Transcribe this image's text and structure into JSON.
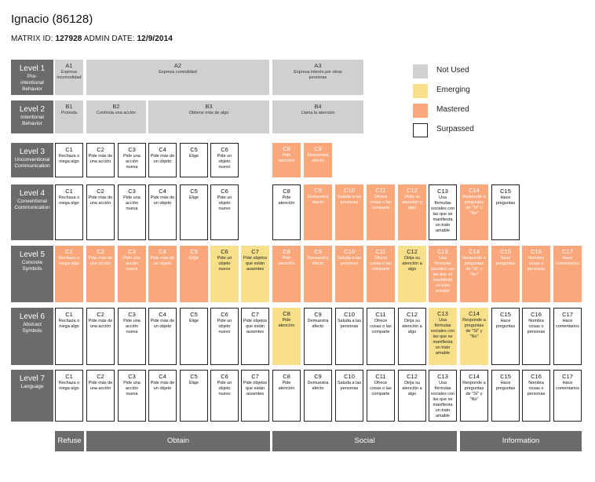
{
  "header": {
    "title": "Ignacio (86128)",
    "matrix_id_label": "MATRIX ID:",
    "matrix_id": "127928",
    "admin_date_label": "ADMIN DATE:",
    "admin_date": "12/9/2014"
  },
  "status_colors": {
    "not_used": "#d0d0d0",
    "emerging": "#f8e08a",
    "mastered": "#f9a77b",
    "surpassed": "#ffffff"
  },
  "legend": [
    {
      "status": "not_used",
      "label": "Not Used"
    },
    {
      "status": "emerging",
      "label": "Emerging"
    },
    {
      "status": "mastered",
      "label": "Mastered"
    },
    {
      "status": "surpassed",
      "label": "Surpassed"
    }
  ],
  "categories": [
    {
      "label": "Refuse"
    },
    {
      "label": "Obtain"
    },
    {
      "label": "Social"
    },
    {
      "label": "Information"
    }
  ],
  "levels": [
    {
      "name": "Level 1",
      "desc": "Pre-\nintentional\nBehavior",
      "cells": [
        {
          "code": "A1",
          "text": "Expresa\nincomodidad",
          "status": "not_used"
        },
        {
          "code": "A2",
          "text": "Expresa comodidad",
          "status": "not_used"
        },
        {
          "code": "A3",
          "text": "Expresa interés por otras\npersonas",
          "status": "not_used"
        }
      ]
    },
    {
      "name": "Level 2",
      "desc": "Intentional\nBehavior",
      "cells": [
        {
          "code": "B1",
          "text": "Protesta",
          "status": "not_used"
        },
        {
          "code": "B2",
          "text": "Continúa una acción",
          "status": "not_used"
        },
        {
          "code": "B3",
          "text": "Obtiene más de algo",
          "status": "not_used"
        },
        {
          "code": "B4",
          "text": "Llama la atención",
          "status": "not_used"
        }
      ]
    },
    {
      "name": "Level 3",
      "desc": "Unconventional\nCommunication",
      "cells": [
        {
          "code": "C1",
          "text": "Rechaza o\nniega algo",
          "status": "surpassed"
        },
        {
          "code": "C2",
          "text": "Pide más de\nuna acción",
          "status": "surpassed"
        },
        {
          "code": "C3",
          "text": "Pide una\nacción\nnueva",
          "status": "surpassed"
        },
        {
          "code": "C4",
          "text": "Pide más de\nun objeto",
          "status": "surpassed"
        },
        {
          "code": "C5",
          "text": "Elige",
          "status": "surpassed"
        },
        {
          "code": "C6",
          "text": "Pide un\nobjeto\nnuevo",
          "status": "surpassed"
        },
        {
          "code": "C8",
          "text": "Pide\natención",
          "status": "mastered"
        },
        {
          "code": "C9",
          "text": "Demuestra\nafecto",
          "status": "mastered"
        }
      ]
    },
    {
      "name": "Level 4",
      "desc": "Conventional\nCommunication",
      "cells": [
        {
          "code": "C1",
          "text": "Rechaza o\nniega algo",
          "status": "surpassed"
        },
        {
          "code": "C2",
          "text": "Pide más de\nuna acción",
          "status": "surpassed"
        },
        {
          "code": "C3",
          "text": "Pide una\nacción\nnueva",
          "status": "surpassed"
        },
        {
          "code": "C4",
          "text": "Pide más de\nun objeto",
          "status": "surpassed"
        },
        {
          "code": "C5",
          "text": "Elige",
          "status": "surpassed"
        },
        {
          "code": "C6",
          "text": "Pide un\nobjeto\nnuevo",
          "status": "surpassed"
        },
        {
          "code": "C8",
          "text": "Pide\natención",
          "status": "surpassed"
        },
        {
          "code": "C9",
          "text": "Demuestra\nafecto",
          "status": "mastered"
        },
        {
          "code": "C10",
          "text": "Saluda a las\npersonas",
          "status": "mastered"
        },
        {
          "code": "C11",
          "text": "Ofrece\ncosas o las\ncomparte",
          "status": "mastered"
        },
        {
          "code": "C12",
          "text": "Dirija su\natención a\nalgo",
          "status": "mastered"
        },
        {
          "code": "C13",
          "text": "Usa\nfórmulas\nsociales con\nlas que se\nmanifiesta\nun trato\namable",
          "status": "surpassed"
        },
        {
          "code": "C14",
          "text": "Responde a\npreguntas\nde \"Sí\" y\n\"No\"",
          "status": "mastered"
        },
        {
          "code": "C15",
          "text": "Hace\npreguntas",
          "status": "surpassed"
        }
      ]
    },
    {
      "name": "Level 5",
      "desc": "Concrete\nSymbols",
      "cells": [
        {
          "code": "C1",
          "text": "Rechaza o\nniega algo",
          "status": "mastered"
        },
        {
          "code": "C2",
          "text": "Pide más de\nuna acción",
          "status": "mastered"
        },
        {
          "code": "C3",
          "text": "Pide una\nacción\nnueva",
          "status": "mastered"
        },
        {
          "code": "C4",
          "text": "Pide más de\nun objeto",
          "status": "mastered"
        },
        {
          "code": "C5",
          "text": "Elige",
          "status": "mastered"
        },
        {
          "code": "C6",
          "text": "Pide un\nobjeto\nnuevo",
          "status": "emerging"
        },
        {
          "code": "C7",
          "text": "Pide objetos\nque están\nausentes",
          "status": "emerging"
        },
        {
          "code": "C8",
          "text": "Pide\natención",
          "status": "mastered"
        },
        {
          "code": "C9",
          "text": "Demuestra\nafecto",
          "status": "mastered"
        },
        {
          "code": "C10",
          "text": "Saluda a las\npersonas",
          "status": "mastered"
        },
        {
          "code": "C11",
          "text": "Ofrece\ncosas o las\ncomparte",
          "status": "mastered"
        },
        {
          "code": "C12",
          "text": "Dirija su\natención a\nalgo",
          "status": "emerging"
        },
        {
          "code": "C13",
          "text": "Usa\nfórmulas\nsociales con\nlas que se\nmanifiesta\nun trato\namable",
          "status": "mastered"
        },
        {
          "code": "C14",
          "text": "Responde a\npreguntas\nde \"Sí\" y\n\"No\"",
          "status": "mastered"
        },
        {
          "code": "C15",
          "text": "Hace\npreguntas",
          "status": "mastered"
        },
        {
          "code": "C16",
          "text": "Nombra\ncosas o\npersonas",
          "status": "mastered"
        },
        {
          "code": "C17",
          "text": "Hace\ncomentarios",
          "status": "mastered"
        }
      ]
    },
    {
      "name": "Level 6",
      "desc": "Abstract\nSymbols",
      "cells": [
        {
          "code": "C1",
          "text": "Rechaza o\nniega algo",
          "status": "surpassed"
        },
        {
          "code": "C2",
          "text": "Pide más de\nuna acción",
          "status": "surpassed"
        },
        {
          "code": "C3",
          "text": "Pide una\nacción\nnueva",
          "status": "surpassed"
        },
        {
          "code": "C4",
          "text": "Pide más de\nun objeto",
          "status": "surpassed"
        },
        {
          "code": "C5",
          "text": "Elige",
          "status": "surpassed"
        },
        {
          "code": "C6",
          "text": "Pide un\nobjeto\nnuevo",
          "status": "surpassed"
        },
        {
          "code": "C7",
          "text": "Pide objetos\nque están\nausentes",
          "status": "surpassed"
        },
        {
          "code": "C8",
          "text": "Pide\natención",
          "status": "emerging"
        },
        {
          "code": "C9",
          "text": "Demuestra\nafecto",
          "status": "surpassed"
        },
        {
          "code": "C10",
          "text": "Saluda a las\npersonas",
          "status": "surpassed"
        },
        {
          "code": "C11",
          "text": "Ofrece\ncosas o las\ncomparte",
          "status": "surpassed"
        },
        {
          "code": "C12",
          "text": "Dirija su\natención a\nalgo",
          "status": "surpassed"
        },
        {
          "code": "C13",
          "text": "Usa\nfórmulas\nsociales con\nlas que se\nmanifiesta\nun trato\namable",
          "status": "emerging"
        },
        {
          "code": "C14",
          "text": "Responde a\npreguntas\nde \"Sí\" y\n\"No\"",
          "status": "emerging"
        },
        {
          "code": "C15",
          "text": "Hace\npreguntas",
          "status": "surpassed"
        },
        {
          "code": "C16",
          "text": "Nombra\ncosas o\npersonas",
          "status": "surpassed"
        },
        {
          "code": "C17",
          "text": "Hace\ncomentarios",
          "status": "surpassed"
        }
      ]
    },
    {
      "name": "Level 7",
      "desc": "Language",
      "cells": [
        {
          "code": "C1",
          "text": "Rechaza o\nniega algo",
          "status": "surpassed"
        },
        {
          "code": "C2",
          "text": "Pide más de\nuna acción",
          "status": "surpassed"
        },
        {
          "code": "C3",
          "text": "Pide una\nacción\nnueva",
          "status": "surpassed"
        },
        {
          "code": "C4",
          "text": "Pide más de\nun objeto",
          "status": "surpassed"
        },
        {
          "code": "C5",
          "text": "Elige",
          "status": "surpassed"
        },
        {
          "code": "C6",
          "text": "Pide un\nobjeto\nnuevo",
          "status": "surpassed"
        },
        {
          "code": "C7",
          "text": "Pide objetos\nque están\nausentes",
          "status": "surpassed"
        },
        {
          "code": "C8",
          "text": "Pide\natención",
          "status": "surpassed"
        },
        {
          "code": "C9",
          "text": "Demuestra\nafecto",
          "status": "surpassed"
        },
        {
          "code": "C10",
          "text": "Saluda a las\npersonas",
          "status": "surpassed"
        },
        {
          "code": "C11",
          "text": "Ofrece\ncosas o las\ncomparte",
          "status": "surpassed"
        },
        {
          "code": "C12",
          "text": "Dirija su\natención a\nalgo",
          "status": "surpassed"
        },
        {
          "code": "C13",
          "text": "Usa\nfórmulas\nsociales con\nlas que se\nmanifiesta\nun trato\namable",
          "status": "surpassed"
        },
        {
          "code": "C14",
          "text": "Responde a\npreguntas\nde \"Sí\" y\n\"No\"",
          "status": "surpassed"
        },
        {
          "code": "C15",
          "text": "Hace\npreguntas",
          "status": "surpassed"
        },
        {
          "code": "C16",
          "text": "Nombra\ncosas o\npersonas",
          "status": "surpassed"
        },
        {
          "code": "C17",
          "text": "Hace\ncomentarios",
          "status": "surpassed"
        }
      ]
    }
  ]
}
